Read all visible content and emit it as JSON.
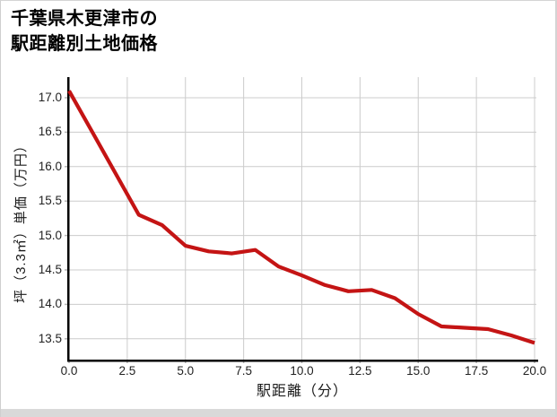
{
  "window": {
    "background": "#ffffff",
    "frame_border_color": "#d4d4d4",
    "bottom_bar_color": "#d9d9d9"
  },
  "header": {
    "title_line1": "千葉県木更津市の",
    "title_line2": "駅距離別土地価格"
  },
  "chart_data": {
    "type": "line",
    "title": "千葉県木更津市の駅距離別土地価格",
    "xlabel": "駅距離（分）",
    "ylabel": "坪（3.3㎡）単価（万円）",
    "x": [
      0,
      1,
      2,
      3,
      4,
      5,
      6,
      7,
      8,
      9,
      10,
      11,
      12,
      13,
      14,
      15,
      16,
      17,
      18,
      19,
      20
    ],
    "values": [
      17.1,
      16.5,
      15.9,
      15.3,
      15.15,
      14.85,
      14.77,
      14.74,
      14.79,
      14.55,
      14.42,
      14.28,
      14.19,
      14.21,
      14.09,
      13.86,
      13.68,
      13.66,
      13.64,
      13.55,
      13.44
    ],
    "x_ticks": [
      0,
      2.5,
      5,
      7.5,
      10,
      12.5,
      15,
      17.5,
      20
    ],
    "x_tick_labels": [
      "0.0",
      "2.5",
      "5.0",
      "7.5",
      "10.0",
      "12.5",
      "15.0",
      "17.5",
      "20.0"
    ],
    "y_ticks": [
      17.0,
      16.5,
      16.0,
      15.5,
      15.0,
      14.5,
      14.0,
      13.5
    ],
    "y_tick_labels": [
      "17.0",
      "16.5",
      "16.0",
      "15.5",
      "15.0",
      "14.5",
      "14.0",
      "13.5"
    ],
    "xlim": [
      0,
      20
    ],
    "ylim": [
      13.2,
      17.3
    ],
    "grid": true,
    "legend": false,
    "line_color": "#c41414",
    "grid_color": "#cccccc",
    "spine_color": "#000000",
    "tick_color": "#b5b5b5"
  }
}
